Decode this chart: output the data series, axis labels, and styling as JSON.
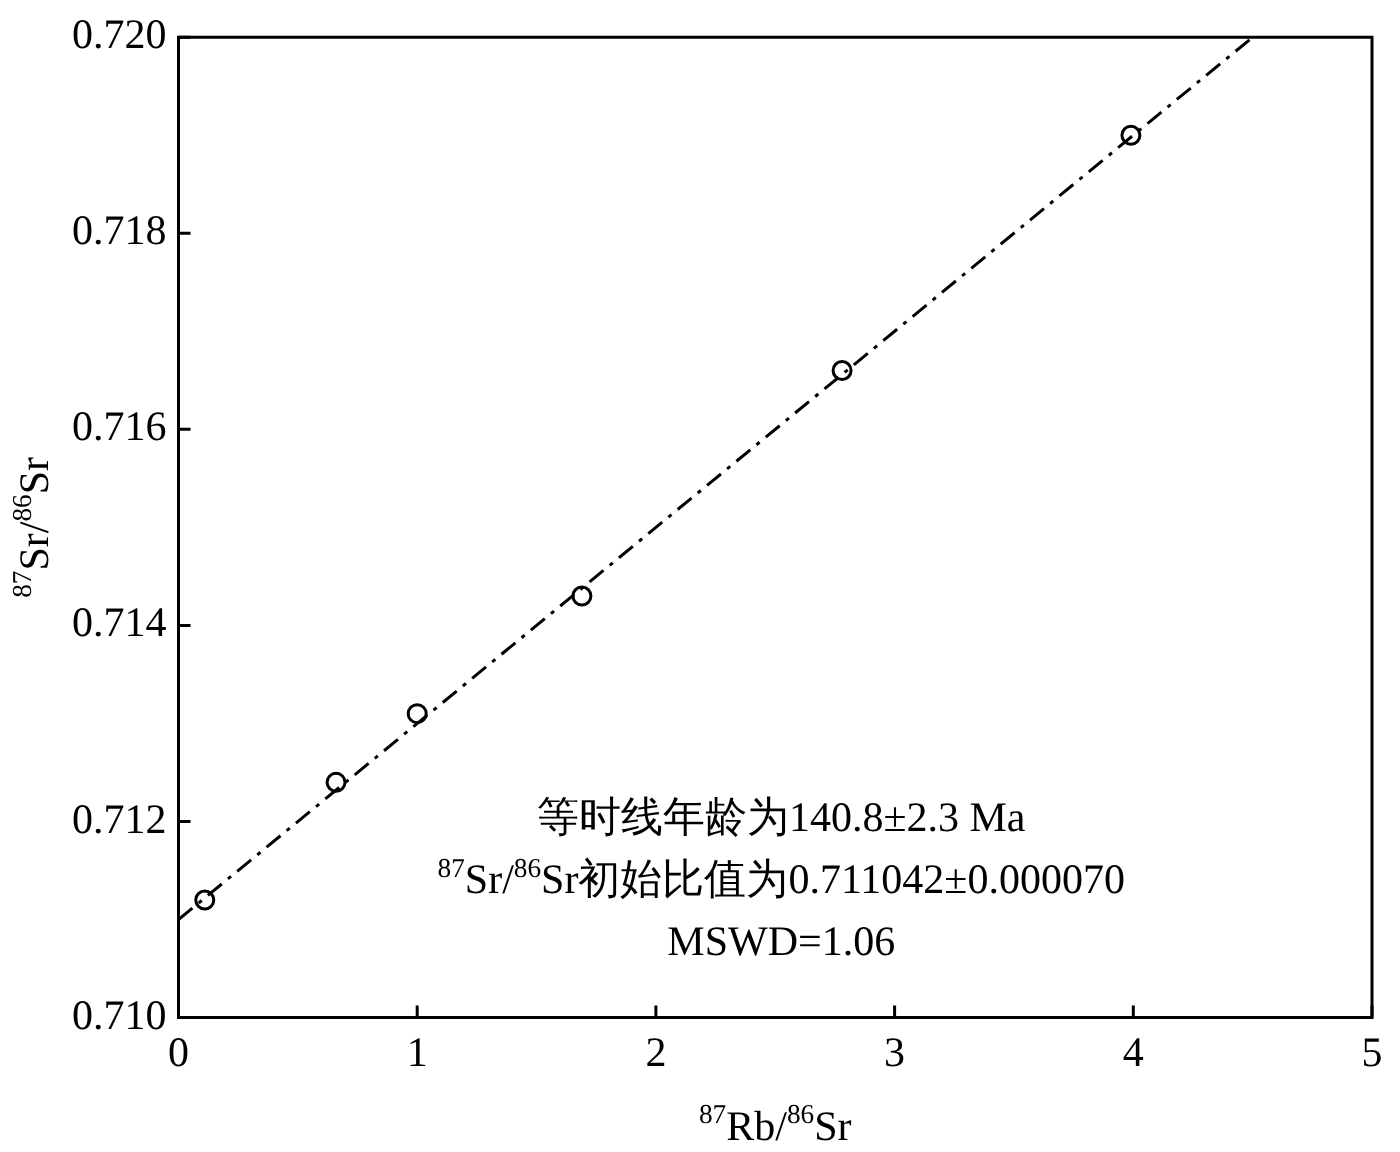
{
  "chart_data": {
    "type": "scatter",
    "xlabel": "$^{87}$Rb/$^{86}$Sr",
    "ylabel": "$^{87}$Sr/$^{86}$Sr",
    "series": [
      {
        "type": "scatter",
        "color": "#000000",
        "marker": "circle",
        "x": [
          0.11,
          0.66,
          1.0,
          1.69,
          2.78,
          3.99
        ],
        "values": [
          0.7112,
          0.7124,
          0.7131,
          0.7143,
          0.7166,
          0.719
        ]
      },
      {
        "type": "line",
        "color": "#000000",
        "marker": "none",
        "line_style": "dashed",
        "x": [
          0,
          4.5
        ],
        "values": [
          0.711,
          0.72
        ]
      }
    ],
    "xlim": [
      0,
      5
    ],
    "xticks": [
      0,
      1,
      2,
      3,
      4,
      5
    ],
    "ylim": [
      0.71,
      0.72
    ],
    "yticks": [
      {
        "value": 0.71,
        "label": "0.710"
      },
      {
        "value": 0.712,
        "label": "0.712"
      },
      {
        "value": 0.714,
        "label": "0.714"
      },
      {
        "value": 0.716,
        "label": "0.716"
      },
      {
        "value": 0.718,
        "label": "0.718"
      },
      {
        "value": 0.72,
        "label": "0.720"
      }
    ],
    "grid": false,
    "legend": false,
    "annotations": [
      "等时线年龄为140.8±2.3 Ma",
      "$^{87}$Sr/$^{86}$Sr初始比值为0.711042±0.000070",
      "MSWD=1.06"
    ]
  }
}
